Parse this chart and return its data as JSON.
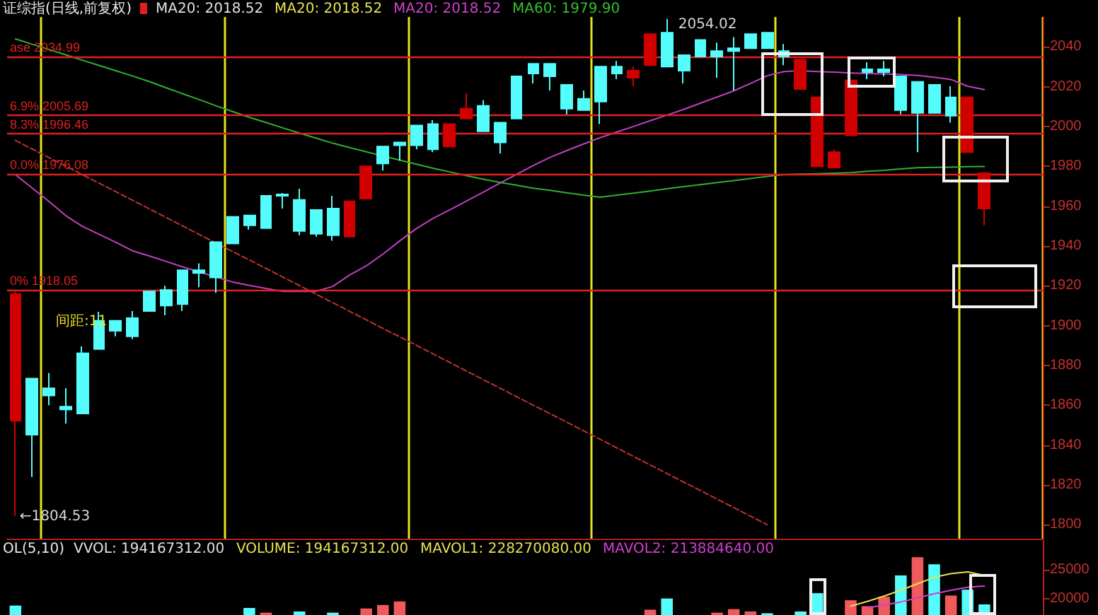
{
  "chart_data": [
    {
      "type": "candlestick",
      "title": "证综指(日线,前复权)",
      "annotations": [
        "MA20: 2018.52",
        "MA20: 2018.52",
        "MA20: 2018.52",
        "MA60: 1979.90",
        "间距:11",
        "2054.02",
        "←1804.53"
      ],
      "categories": [
        null,
        null,
        null,
        null,
        null,
        null,
        null,
        null,
        null,
        null,
        null,
        null,
        null,
        null,
        null,
        null,
        null,
        null,
        null,
        null,
        null,
        null,
        null,
        null,
        null,
        null,
        null,
        null,
        null,
        null,
        null,
        null,
        null,
        null,
        null,
        null,
        null,
        null,
        null,
        null,
        null,
        null,
        null,
        null,
        null,
        null,
        null,
        null,
        null,
        null,
        null,
        null,
        null,
        null,
        null,
        null,
        null,
        null,
        null,
        null,
        null,
        null
      ],
      "ohlc": [
        [
          1915.8,
          1917.0,
          1804.53,
          1852.2
        ],
        [
          1845.2,
          1873.4,
          1824.0,
          1873.4
        ],
        [
          1864.9,
          1876.2,
          1860.0,
          1868.5
        ],
        [
          1857.9,
          1868.5,
          1850.8,
          1859.3
        ],
        [
          1855.8,
          1889.6,
          1855.8,
          1886.1
        ],
        [
          1888.2,
          1907.0,
          1888.2,
          1902.4
        ],
        [
          1897.4,
          1902.4,
          1894.6,
          1902.4
        ],
        [
          1894.6,
          1907.3,
          1893.2,
          1903.8
        ],
        [
          1907.3,
          1917.2,
          1907.3,
          1917.2
        ],
        [
          1910.1,
          1920.0,
          1905.2,
          1917.9
        ],
        [
          1910.8,
          1927.8,
          1907.3,
          1927.8
        ],
        [
          1926.4,
          1931.3,
          1919.3,
          1927.8
        ],
        [
          1924.2,
          1941.9,
          1916.5,
          1941.9
        ],
        [
          1941.2,
          1954.6,
          1941.2,
          1954.6
        ],
        [
          1950.4,
          1955.3,
          1948.2,
          1955.3
        ],
        [
          1948.9,
          1965.2,
          1948.9,
          1965.2
        ],
        [
          1965.2,
          1966.6,
          1958.8,
          1965.9
        ],
        [
          1947.5,
          1968.7,
          1945.4,
          1963.1
        ],
        [
          1946.1,
          1958.1,
          1944.7,
          1958.1
        ],
        [
          1945.4,
          1965.2,
          1942.6,
          1958.8
        ],
        [
          1962.4,
          1962.4,
          1944.7,
          1944.7
        ],
        [
          1980.0,
          1980.0,
          1963.8,
          1963.8
        ],
        [
          1981.4,
          1989.9,
          1977.9,
          1989.9
        ],
        [
          1990.6,
          1992.0,
          1982.8,
          1992.0
        ],
        [
          1990.6,
          2000.5,
          1988.5,
          2000.5
        ],
        [
          1988.5,
          2003.3,
          1987.1,
          2001.2
        ],
        [
          2001.2,
          2001.2,
          1989.9,
          1989.9
        ],
        [
          2008.9,
          2016.7,
          2004.0,
          2004.0
        ],
        [
          1997.6,
          2013.2,
          1997.6,
          2010.4
        ],
        [
          1992.0,
          2001.9,
          1986.4,
          2001.9
        ],
        [
          2004.0,
          2025.2,
          2004.0,
          2025.2
        ],
        [
          2026.6,
          2031.5,
          2021.6,
          2031.5
        ],
        [
          2025.2,
          2031.5,
          2018.1,
          2031.5
        ],
        [
          2008.9,
          2020.9,
          2006.1,
          2020.9
        ],
        [
          2008.2,
          2018.1,
          2008.2,
          2013.9
        ],
        [
          2012.5,
          2030.1,
          2001.2,
          2030.1
        ],
        [
          2026.6,
          2032.9,
          2023.8,
          2030.1
        ],
        [
          2028.0,
          2030.1,
          2020.2,
          2024.5
        ],
        [
          2046.4,
          2046.4,
          2030.8,
          2030.8
        ],
        [
          2030.1,
          2054.02,
          2030.1,
          2047.1
        ],
        [
          2028.0,
          2035.8,
          2021.6,
          2035.8
        ],
        [
          2035.1,
          2043.5,
          2035.1,
          2043.5
        ],
        [
          2035.1,
          2042.1,
          2024.5,
          2037.9
        ],
        [
          2037.9,
          2044.9,
          2018.1,
          2039.3
        ],
        [
          2039.3,
          2046.4,
          2039.3,
          2046.4
        ],
        [
          2039.3,
          2047.1,
          2039.3,
          2047.1
        ],
        [
          2035.1,
          2041.4,
          2030.8,
          2037.9
        ],
        [
          2033.6,
          2033.6,
          2018.8,
          2018.8
        ],
        [
          2014.6,
          2014.6,
          1980.0,
          1980.0
        ],
        [
          1987.1,
          1988.5,
          1979.3,
          1979.3
        ],
        [
          2023.1,
          2023.1,
          1995.5,
          1995.5
        ],
        [
          2027.3,
          2032.2,
          2023.8,
          2028.7
        ],
        [
          2027.3,
          2032.9,
          2025.2,
          2028.7
        ],
        [
          2008.2,
          2025.2,
          2006.1,
          2025.2
        ],
        [
          2006.8,
          2022.4,
          1987.1,
          2022.4
        ],
        [
          2006.8,
          2020.9,
          2006.8,
          2020.9
        ],
        [
          2005.4,
          2020.2,
          2001.9,
          2014.6
        ],
        [
          2014.6,
          2014.6,
          1987.1,
          1987.1
        ],
        [
          1976.5,
          1976.5,
          1950.4,
          1958.8
        ],
        null,
        null,
        null
      ],
      "colors": [
        "#d00000",
        "#54fcfc",
        "#54fcfc",
        "#54fcfc",
        "#54fcfc",
        "#54fcfc",
        "#54fcfc",
        "#54fcfc",
        "#54fcfc",
        "#54fcfc",
        "#54fcfc",
        "#54fcfc",
        "#54fcfc",
        "#54fcfc",
        "#54fcfc",
        "#54fcfc",
        "#54fcfc",
        "#54fcfc",
        "#54fcfc",
        "#54fcfc",
        "#d00000",
        "#d00000",
        "#54fcfc",
        "#54fcfc",
        "#54fcfc",
        "#54fcfc",
        "#d00000",
        "#d00000",
        "#54fcfc",
        "#54fcfc",
        "#54fcfc",
        "#54fcfc",
        "#54fcfc",
        "#54fcfc",
        "#54fcfc",
        "#54fcfc",
        "#54fcfc",
        "#d00000",
        "#d00000",
        "#54fcfc",
        "#54fcfc",
        "#54fcfc",
        "#54fcfc",
        "#54fcfc",
        "#54fcfc",
        "#54fcfc",
        "#54fcfc",
        "#d00000",
        "#d00000",
        "#d00000",
        "#d00000",
        "#54fcfc",
        "#54fcfc",
        "#54fcfc",
        "#54fcfc",
        "#54fcfc",
        "#54fcfc",
        "#d00000",
        "#d00000",
        "#54fcfc",
        "#54fcfc",
        "#54fcfc"
      ],
      "series": [
        {
          "type": "line",
          "color": "#c040c0",
          "values": [
            1975.8,
            1969.1,
            1962.4,
            1955.3,
            1949.9,
            1945.9,
            1941.9,
            1937.6,
            1935.0,
            1932.3,
            1929.5,
            1927.0,
            1924.4,
            1921.9,
            1920.2,
            1918.7,
            1917.2,
            1917.2,
            1917.2,
            1919.7,
            1925.4,
            1930.0,
            1935.9,
            1942.5,
            1948.7,
            1953.9,
            1958.1,
            1962.6,
            1967.0,
            1971.5,
            1976.0,
            1980.4,
            1984.5,
            1987.9,
            1991.2,
            1994.4,
            1997.2,
            2000.0,
            2002.9,
            2005.7,
            2008.6,
            2011.7,
            2014.8,
            2017.9,
            2021.6,
            2025.5,
            2027.6,
            2028.0,
            2027.6,
            2027.3,
            2026.9,
            2026.6,
            2026.4,
            2026.1,
            2025.6,
            2024.7,
            2023.6,
            2020.2,
            2018.5,
            null,
            null,
            null
          ]
        },
        {
          "type": "line",
          "color": "#30b030",
          "values": [
            2044.0,
            2041.3,
            2038.7,
            2036.0,
            2033.3,
            2030.7,
            2028.0,
            2025.4,
            2022.6,
            2019.5,
            2016.5,
            2013.5,
            2010.4,
            2007.5,
            2004.6,
            2002.0,
            1999.3,
            1996.7,
            1994.1,
            1991.6,
            1989.4,
            1987.3,
            1985.2,
            1983.1,
            1981.1,
            1979.0,
            1977.2,
            1975.3,
            1973.5,
            1971.9,
            1970.5,
            1969.0,
            1967.9,
            1966.7,
            1965.5,
            1964.5,
            1965.5,
            1966.5,
            1967.6,
            1968.7,
            1969.8,
            1970.8,
            1971.8,
            1972.8,
            1973.9,
            1974.9,
            1975.8,
            1976.1,
            1976.3,
            1976.5,
            1976.8,
            1977.5,
            1978.0,
            1978.7,
            1979.3,
            1979.5,
            1979.6,
            1979.8,
            1979.9,
            null,
            null,
            null
          ]
        },
        {
          "type": "line",
          "color": "#c03030",
          "line_style": "dashed",
          "values": [
            1993.0,
            1988.7,
            1984.4,
            1980.1,
            1975.8,
            1971.6,
            1967.3,
            1963.0,
            1958.7,
            1954.4,
            1950.1,
            1945.8,
            1941.5,
            1937.2,
            1933.0,
            1928.7,
            1924.4,
            1920.1,
            1915.8,
            1911.5,
            1907.2,
            1902.9,
            1898.6,
            1894.4,
            1890.1,
            1885.8,
            1881.5,
            1877.2,
            1872.9,
            1868.6,
            1864.3,
            1860.0,
            1855.8,
            1851.5,
            1847.2,
            1842.9,
            1838.6,
            1834.3,
            1830.0,
            1825.7,
            1821.4,
            1817.2,
            1812.9,
            1808.6,
            1804.3,
            1800.0,
            null,
            null,
            null,
            null,
            null,
            null,
            null,
            null,
            null,
            null,
            null,
            null,
            null,
            null,
            null,
            null
          ]
        }
      ],
      "ref_lines": [
        {
          "axis": "y",
          "value": 2034.99,
          "label": "ase 2034.99",
          "color": "#e02020"
        },
        {
          "axis": "y",
          "value": 2005.69,
          "label": "6.9% 2005.69",
          "color": "#e02020"
        },
        {
          "axis": "y",
          "value": 1996.46,
          "label": "8.3% 1996.46",
          "color": "#e02020"
        },
        {
          "axis": "y",
          "value": 1976.08,
          "label": "0.0% 1976.08",
          "color": "#e02020"
        },
        {
          "axis": "y",
          "value": 1918.05,
          "label": "0% 1918.05",
          "color": "#e02020"
        }
      ],
      "ylim": [
        1793,
        2055
      ],
      "yticks": [
        1800,
        1820,
        1840,
        1860,
        1880,
        1900,
        1920,
        1940,
        1960,
        1980,
        2000,
        2020,
        2040
      ],
      "tick_labels": "y",
      "marker": "none",
      "grid": "x"
    },
    {
      "type": "bar",
      "title": "OL(5,10)",
      "annotations": [
        "VVOL: 194167312.00",
        "VOLUME: 194167312.00",
        "MAVOL1: 228270080.00",
        "MAVOL2: 213884640.00"
      ],
      "categories": [
        null,
        null,
        null,
        null,
        null,
        null,
        null,
        null,
        null,
        null,
        null,
        null,
        null,
        null,
        null,
        null,
        null,
        null,
        null,
        null,
        null,
        null,
        null,
        null,
        null,
        null,
        null,
        null,
        null,
        null,
        null,
        null,
        null,
        null,
        null,
        null,
        null,
        null,
        null,
        null,
        null,
        null,
        null,
        null,
        null,
        null,
        null,
        null,
        null,
        null,
        null,
        null,
        null,
        null,
        null,
        null,
        null,
        null,
        null,
        null,
        null,
        null
      ],
      "values": [
        18900,
        null,
        null,
        null,
        null,
        null,
        null,
        null,
        null,
        null,
        null,
        null,
        null,
        null,
        18500,
        17700,
        null,
        17900,
        null,
        17700,
        null,
        18400,
        19000,
        19600,
        null,
        null,
        null,
        null,
        null,
        null,
        null,
        null,
        null,
        null,
        null,
        null,
        null,
        null,
        18200,
        20100,
        null,
        null,
        17700,
        18300,
        17900,
        17600,
        null,
        17900,
        21000,
        null,
        19800,
        18800,
        20400,
        24000,
        27100,
        25900,
        20600,
        21600,
        19100,
        null,
        null,
        null
      ],
      "colors": [
        "#54fcfc",
        "#54fcfc",
        "#54fcfc",
        "#54fcfc",
        "#54fcfc",
        "#54fcfc",
        "#54fcfc",
        "#54fcfc",
        "#54fcfc",
        "#54fcfc",
        "#54fcfc",
        "#54fcfc",
        "#54fcfc",
        "#54fcfc",
        "#54fcfc",
        "#f05a5a",
        "#54fcfc",
        "#54fcfc",
        "#54fcfc",
        "#54fcfc",
        "#54fcfc",
        "#f05a5a",
        "#f05a5a",
        "#f05a5a",
        "#54fcfc",
        "#54fcfc",
        "#54fcfc",
        "#54fcfc",
        "#54fcfc",
        "#54fcfc",
        "#54fcfc",
        "#54fcfc",
        "#54fcfc",
        "#54fcfc",
        "#54fcfc",
        "#54fcfc",
        "#54fcfc",
        "#54fcfc",
        "#f05a5a",
        "#54fcfc",
        "#54fcfc",
        "#54fcfc",
        "#f05a5a",
        "#f05a5a",
        "#f05a5a",
        "#54fcfc",
        "#54fcfc",
        "#54fcfc",
        "#54fcfc",
        "#54fcfc",
        "#f05a5a",
        "#f05a5a",
        "#f05a5a",
        "#54fcfc",
        "#f05a5a",
        "#54fcfc",
        "#f05a5a",
        "#54fcfc",
        "#54fcfc",
        "#54fcfc",
        "#54fcfc",
        "#54fcfc"
      ],
      "series": [
        {
          "type": "line",
          "color": "#e8e050",
          "values": [
            null,
            null,
            null,
            null,
            null,
            null,
            null,
            null,
            null,
            null,
            null,
            null,
            null,
            null,
            null,
            null,
            null,
            null,
            null,
            null,
            null,
            null,
            null,
            null,
            null,
            null,
            null,
            null,
            null,
            null,
            null,
            null,
            null,
            null,
            null,
            null,
            null,
            null,
            null,
            null,
            null,
            null,
            null,
            null,
            null,
            null,
            null,
            null,
            null,
            null,
            18800,
            19600,
            20500,
            21500,
            22600,
            23700,
            24300,
            24600,
            24000,
            null,
            null,
            null
          ]
        },
        {
          "type": "line",
          "color": "#d040d0",
          "values": [
            null,
            null,
            null,
            null,
            null,
            null,
            null,
            null,
            null,
            null,
            null,
            null,
            null,
            null,
            null,
            null,
            null,
            null,
            null,
            null,
            null,
            null,
            null,
            null,
            null,
            null,
            null,
            null,
            null,
            null,
            null,
            null,
            null,
            null,
            null,
            null,
            null,
            null,
            null,
            null,
            null,
            null,
            null,
            null,
            null,
            null,
            null,
            null,
            null,
            null,
            null,
            18500,
            19000,
            19500,
            20200,
            20900,
            21500,
            22000,
            22200,
            null,
            null,
            null
          ]
        }
      ],
      "ylim": [
        17300,
        30000
      ],
      "yticks": [
        20000,
        25000
      ],
      "tick_labels": "y",
      "marker": "none"
    }
  ]
}
